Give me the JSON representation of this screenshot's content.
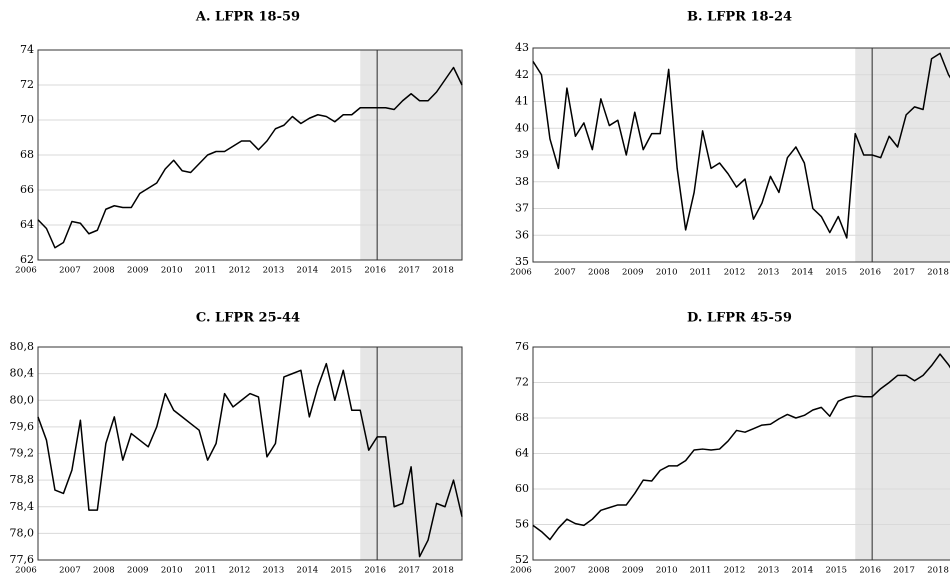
{
  "chart_data": [
    {
      "type": "line",
      "title": "A. LFPR 18-59",
      "color": "#000000",
      "grid": true,
      "categories": [
        "2006",
        null,
        null,
        null,
        "2007",
        null,
        null,
        null,
        "2008",
        null,
        null,
        null,
        "2009",
        null,
        null,
        null,
        "2010",
        null,
        null,
        null,
        "2011",
        null,
        null,
        null,
        "2012",
        null,
        null,
        null,
        "2013",
        null,
        null,
        null,
        "2014",
        null,
        null,
        null,
        "2015",
        null,
        null,
        null,
        "2016",
        null,
        null,
        null,
        "2017",
        null,
        null,
        null,
        "2018",
        null,
        null
      ],
      "values": [
        64.3,
        63.8,
        62.7,
        63.0,
        64.2,
        64.1,
        63.5,
        63.7,
        64.9,
        65.1,
        65.0,
        65.0,
        65.8,
        66.1,
        66.4,
        67.2,
        67.7,
        67.1,
        67.0,
        67.5,
        68.0,
        68.2,
        68.2,
        68.5,
        68.8,
        68.8,
        68.3,
        68.8,
        69.5,
        69.7,
        70.2,
        69.8,
        70.1,
        70.3,
        70.2,
        69.9,
        70.3,
        70.3,
        70.7,
        70.7,
        70.7,
        70.7,
        70.6,
        71.1,
        71.5,
        71.1,
        71.1,
        71.6,
        72.3,
        73.0,
        72.0
      ],
      "ylim": [
        62,
        74
      ],
      "yticks": [
        62,
        64,
        66,
        68,
        70,
        72,
        74
      ]
    },
    {
      "type": "line",
      "title": "B. LFPR 18-24",
      "color": "#000000",
      "grid": true,
      "categories": [
        "2006",
        null,
        null,
        null,
        "2007",
        null,
        null,
        null,
        "2008",
        null,
        null,
        null,
        "2009",
        null,
        null,
        null,
        "2010",
        null,
        null,
        null,
        "2011",
        null,
        null,
        null,
        "2012",
        null,
        null,
        null,
        "2013",
        null,
        null,
        null,
        "2014",
        null,
        null,
        null,
        "2015",
        null,
        null,
        null,
        "2016",
        null,
        null,
        null,
        "2017",
        null,
        null,
        null,
        "2018",
        null,
        null
      ],
      "values": [
        42.5,
        42.0,
        39.6,
        38.5,
        41.5,
        39.7,
        40.2,
        39.2,
        41.1,
        40.1,
        40.3,
        39.0,
        40.6,
        39.2,
        39.8,
        39.8,
        42.2,
        38.5,
        36.2,
        37.6,
        39.9,
        38.5,
        38.7,
        38.3,
        37.8,
        38.1,
        36.6,
        37.2,
        38.2,
        37.6,
        38.9,
        39.3,
        38.7,
        37.0,
        36.7,
        36.1,
        36.7,
        35.9,
        39.8,
        39.0,
        39.0,
        38.9,
        39.7,
        39.3,
        40.5,
        40.8,
        40.7,
        42.6,
        42.8,
        42.0,
        41.5
      ],
      "ylim": [
        35,
        43
      ],
      "yticks": [
        35,
        36,
        37,
        38,
        39,
        40,
        41,
        42,
        43
      ]
    },
    {
      "type": "line",
      "title": "C. LFPR 25-44",
      "color": "#000000",
      "grid": true,
      "categories": [
        "2006",
        null,
        null,
        null,
        "2007",
        null,
        null,
        null,
        "2008",
        null,
        null,
        null,
        "2009",
        null,
        null,
        null,
        "2010",
        null,
        null,
        null,
        "2011",
        null,
        null,
        null,
        "2012",
        null,
        null,
        null,
        "2013",
        null,
        null,
        null,
        "2014",
        null,
        null,
        null,
        "2015",
        null,
        null,
        null,
        "2016",
        null,
        null,
        null,
        "2017",
        null,
        null,
        null,
        "2018",
        null,
        null
      ],
      "values": [
        79.75,
        79.4,
        78.65,
        78.6,
        78.95,
        79.7,
        78.35,
        78.35,
        79.35,
        79.75,
        79.1,
        79.5,
        79.4,
        79.3,
        79.6,
        80.1,
        79.85,
        79.75,
        79.65,
        79.55,
        79.1,
        79.35,
        80.1,
        79.9,
        80.0,
        80.1,
        80.05,
        79.15,
        79.35,
        80.35,
        80.4,
        80.45,
        79.75,
        80.2,
        80.55,
        80.0,
        80.45,
        79.85,
        79.85,
        79.25,
        79.45,
        79.45,
        78.4,
        78.45,
        79.0,
        77.65,
        77.9,
        78.45,
        78.4,
        78.8,
        78.25
      ],
      "ylim": [
        77.6,
        80.8
      ],
      "yticks": [
        {
          "value": 77.6,
          "label": "77,6"
        },
        {
          "value": 78.0,
          "label": "78,0"
        },
        {
          "value": 78.4,
          "label": "78,4"
        },
        {
          "value": 78.8,
          "label": "78,8"
        },
        {
          "value": 79.2,
          "label": "79,2"
        },
        {
          "value": 79.6,
          "label": "79,6"
        },
        {
          "value": 80.0,
          "label": "80,0"
        },
        {
          "value": 80.4,
          "label": "80,4"
        },
        {
          "value": 80.8,
          "label": "80,8"
        }
      ]
    },
    {
      "type": "line",
      "title": "D. LFPR 45-59",
      "color": "#000000",
      "grid": true,
      "categories": [
        "2006",
        null,
        null,
        null,
        "2007",
        null,
        null,
        null,
        "2008",
        null,
        null,
        null,
        "2009",
        null,
        null,
        null,
        "2010",
        null,
        null,
        null,
        "2011",
        null,
        null,
        null,
        "2012",
        null,
        null,
        null,
        "2013",
        null,
        null,
        null,
        "2014",
        null,
        null,
        null,
        "2015",
        null,
        null,
        null,
        "2016",
        null,
        null,
        null,
        "2017",
        null,
        null,
        null,
        "2018",
        null,
        null
      ],
      "values": [
        55.9,
        55.2,
        54.3,
        55.6,
        56.6,
        56.1,
        55.9,
        56.6,
        57.6,
        57.9,
        58.2,
        58.2,
        59.5,
        61.0,
        60.9,
        62.1,
        62.6,
        62.6,
        63.2,
        64.4,
        64.5,
        64.4,
        64.5,
        65.4,
        66.6,
        66.4,
        66.8,
        67.2,
        67.3,
        67.9,
        68.4,
        68.0,
        68.3,
        68.9,
        69.2,
        68.2,
        69.9,
        70.3,
        70.5,
        70.4,
        70.4,
        71.3,
        72.0,
        72.8,
        72.8,
        72.2,
        72.8,
        73.9,
        75.2,
        74.0,
        72.5
      ],
      "ylim": [
        52,
        76
      ],
      "yticks": [
        52,
        56,
        60,
        64,
        68,
        72,
        76
      ]
    }
  ]
}
